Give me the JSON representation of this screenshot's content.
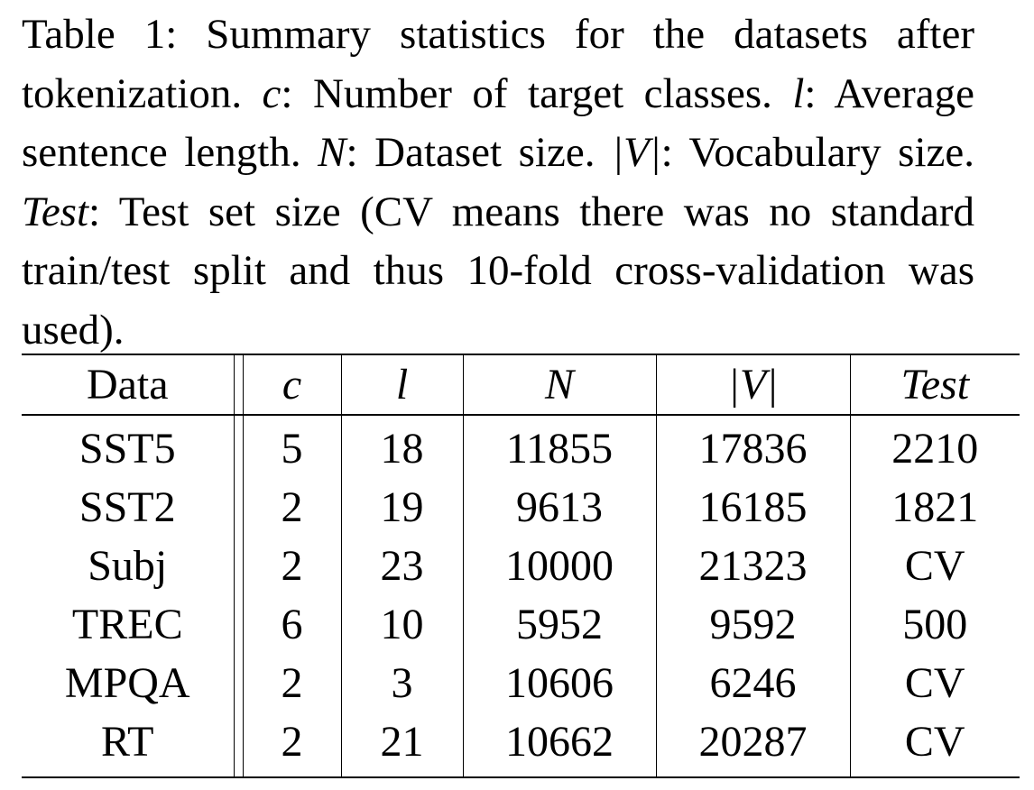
{
  "caption": {
    "label": "Table 1:",
    "intro": "Summary statistics for the datasets after tokenization.",
    "c_sym": "c",
    "c_def": "Number of target classes.",
    "l_sym": "l",
    "l_def": "Average sentence length.",
    "n_sym": "N",
    "n_def": "Dataset size.",
    "v_sym": "|V|",
    "v_def": "Vocabulary size.",
    "test_sym": "Test",
    "test_def": "Test set size (CV means there was no standard train/test split and thus 10-fold cross-validation was used)."
  },
  "table": {
    "headers": [
      "Data",
      "c",
      "l",
      "N",
      "|V|",
      "Test"
    ],
    "rows": [
      [
        "SST5",
        "5",
        "18",
        "11855",
        "17836",
        "2210"
      ],
      [
        "SST2",
        "2",
        "19",
        "9613",
        "16185",
        "1821"
      ],
      [
        "Subj",
        "2",
        "23",
        "10000",
        "21323",
        "CV"
      ],
      [
        "TREC",
        "6",
        "10",
        "5952",
        "9592",
        "500"
      ],
      [
        "MPQA",
        "2",
        "3",
        "10606",
        "6246",
        "CV"
      ],
      [
        "RT",
        "2",
        "21",
        "10662",
        "20287",
        "CV"
      ]
    ]
  }
}
